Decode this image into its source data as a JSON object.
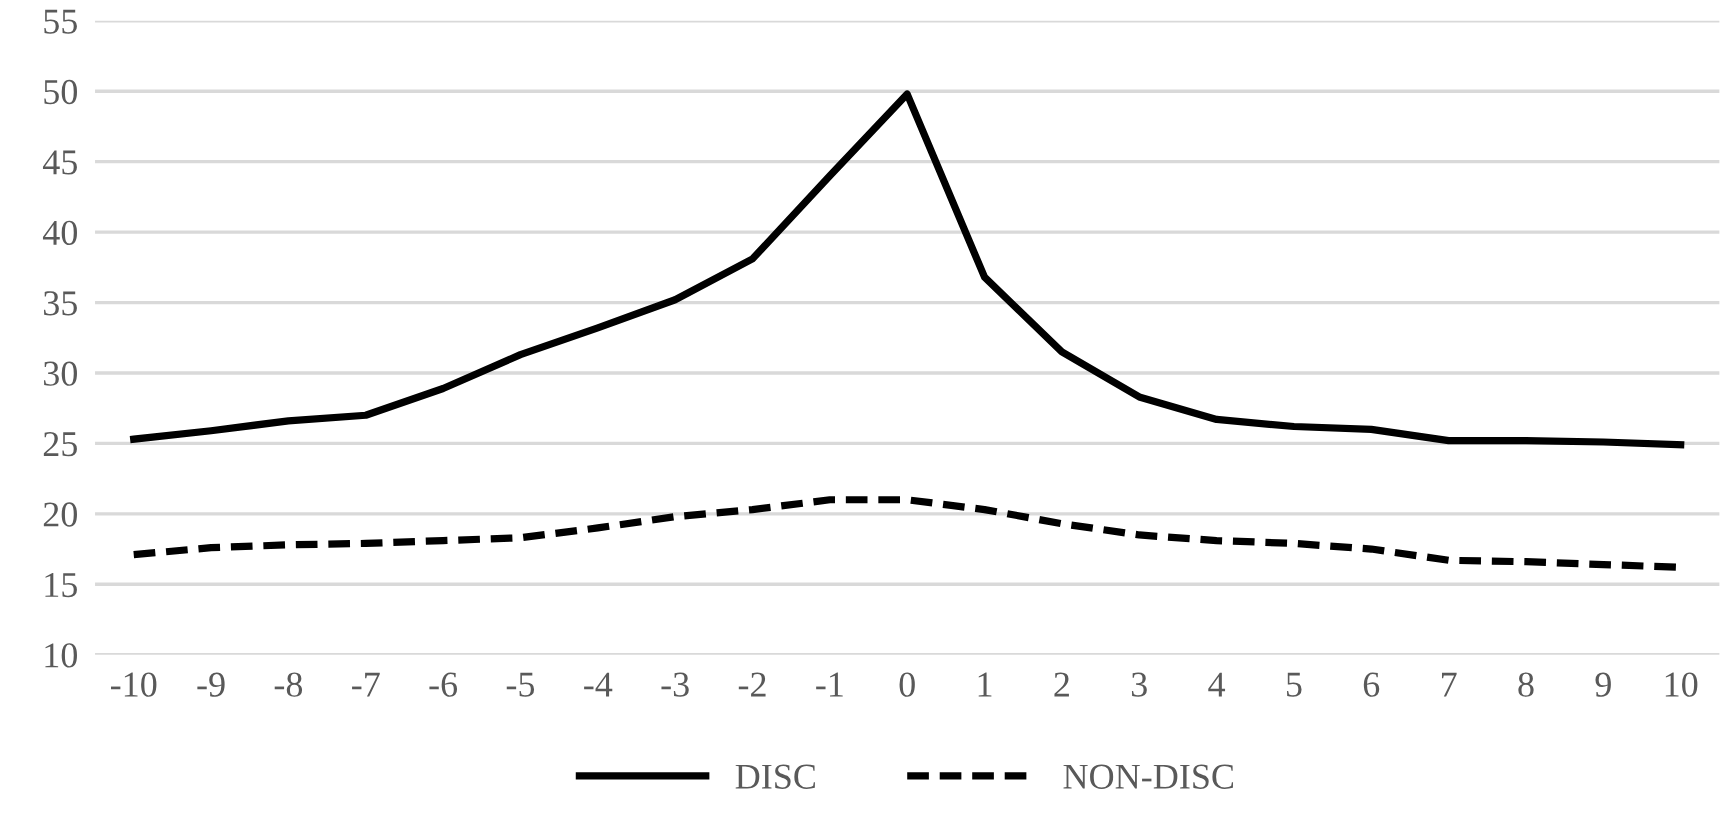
{
  "chart_data": {
    "type": "line",
    "categories": [
      "-10",
      "-9",
      "-8",
      "-7",
      "-6",
      "-5",
      "-4",
      "-3",
      "-2",
      "-1",
      "0",
      "1",
      "2",
      "3",
      "4",
      "5",
      "6",
      "7",
      "8",
      "9",
      "10"
    ],
    "series": [
      {
        "name": "DISC",
        "color": "#000000",
        "line_style": "solid",
        "values": [
          25.3,
          25.9,
          26.6,
          27.0,
          28.9,
          31.3,
          33.2,
          35.2,
          38.1,
          44.0,
          49.8,
          36.8,
          31.5,
          28.3,
          26.7,
          26.2,
          26.0,
          25.2,
          25.2,
          25.1,
          24.9
        ]
      },
      {
        "name": "NON-DISC",
        "color": "#000000",
        "line_style": "dashed",
        "values": [
          17.1,
          17.6,
          17.8,
          17.9,
          18.1,
          18.3,
          19.0,
          19.8,
          20.3,
          21.0,
          21.0,
          20.3,
          19.3,
          18.5,
          18.1,
          17.9,
          17.5,
          16.7,
          16.6,
          16.4,
          16.2
        ]
      }
    ],
    "ylim": [
      10,
      55
    ],
    "yticks": [
      10,
      15,
      20,
      25,
      30,
      35,
      40,
      45,
      50,
      55
    ],
    "grid": "y",
    "legend": "bottom"
  }
}
